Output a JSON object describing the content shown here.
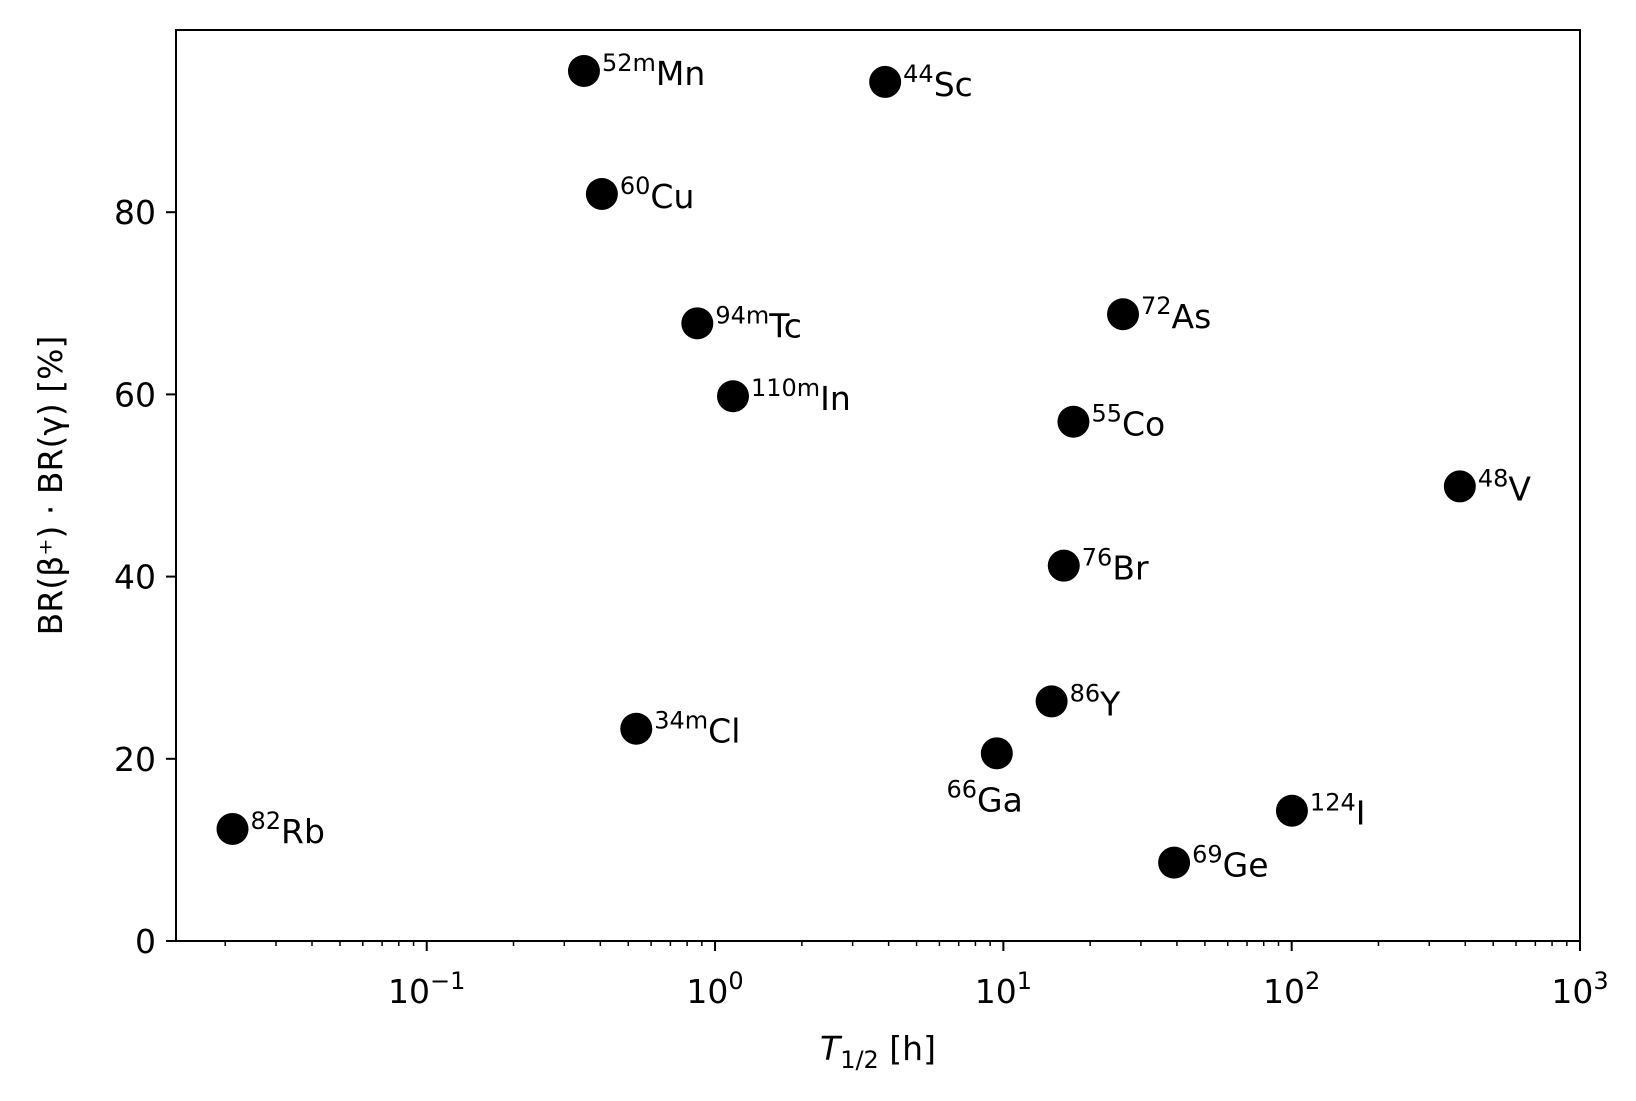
{
  "chart_data": {
    "type": "scatter",
    "title": "",
    "xlabel": {
      "main": "T",
      "sub": "1/2",
      "unit": " [h]"
    },
    "ylabel": "BR(β⁺) · BR(γ) [%]",
    "xscale": "log",
    "xlim": [
      0.0135,
      1000
    ],
    "ylim": [
      0,
      100
    ],
    "grid": false,
    "marker_color": "#000000",
    "x_ticks": [
      {
        "value": 0.1,
        "base": "10",
        "exp": "−1"
      },
      {
        "value": 1,
        "base": "10",
        "exp": "0"
      },
      {
        "value": 10,
        "base": "10",
        "exp": "1"
      },
      {
        "value": 100,
        "base": "10",
        "exp": "2"
      },
      {
        "value": 1000,
        "base": "10",
        "exp": "3"
      }
    ],
    "y_ticks": [
      {
        "value": 0,
        "label": "0"
      },
      {
        "value": 20,
        "label": "20"
      },
      {
        "value": 40,
        "label": "40"
      },
      {
        "value": 60,
        "label": "60"
      },
      {
        "value": 80,
        "label": "80"
      }
    ],
    "points": [
      {
        "iso": "82",
        "el": "Rb",
        "x": 0.0212,
        "y": 12.3,
        "anchor": "start"
      },
      {
        "iso": "52m",
        "el": "Mn",
        "x": 0.351,
        "y": 95.5,
        "anchor": "start"
      },
      {
        "iso": "60",
        "el": "Cu",
        "x": 0.405,
        "y": 82.0,
        "anchor": "start"
      },
      {
        "iso": "94m",
        "el": "Tc",
        "x": 0.868,
        "y": 67.8,
        "anchor": "start"
      },
      {
        "iso": "110m",
        "el": "In",
        "x": 1.154,
        "y": 59.8,
        "anchor": "start"
      },
      {
        "iso": "34m",
        "el": "Cl",
        "x": 0.533,
        "y": 23.3,
        "anchor": "start"
      },
      {
        "iso": "44",
        "el": "Sc",
        "x": 3.89,
        "y": 94.3,
        "anchor": "start"
      },
      {
        "iso": "66",
        "el": "Ga",
        "x": 9.49,
        "y": 20.6,
        "anchor": "end"
      },
      {
        "iso": "86",
        "el": "Y",
        "x": 14.7,
        "y": 26.3,
        "anchor": "start"
      },
      {
        "iso": "76",
        "el": "Br",
        "x": 16.2,
        "y": 41.2,
        "anchor": "start"
      },
      {
        "iso": "55",
        "el": "Co",
        "x": 17.5,
        "y": 57.0,
        "anchor": "start"
      },
      {
        "iso": "72",
        "el": "As",
        "x": 26.0,
        "y": 68.8,
        "anchor": "start"
      },
      {
        "iso": "69",
        "el": "Ge",
        "x": 39.1,
        "y": 8.6,
        "anchor": "start"
      },
      {
        "iso": "124",
        "el": "I",
        "x": 100.2,
        "y": 14.3,
        "anchor": "start"
      },
      {
        "iso": "48",
        "el": "V",
        "x": 383.0,
        "y": 49.9,
        "anchor": "start"
      }
    ]
  }
}
